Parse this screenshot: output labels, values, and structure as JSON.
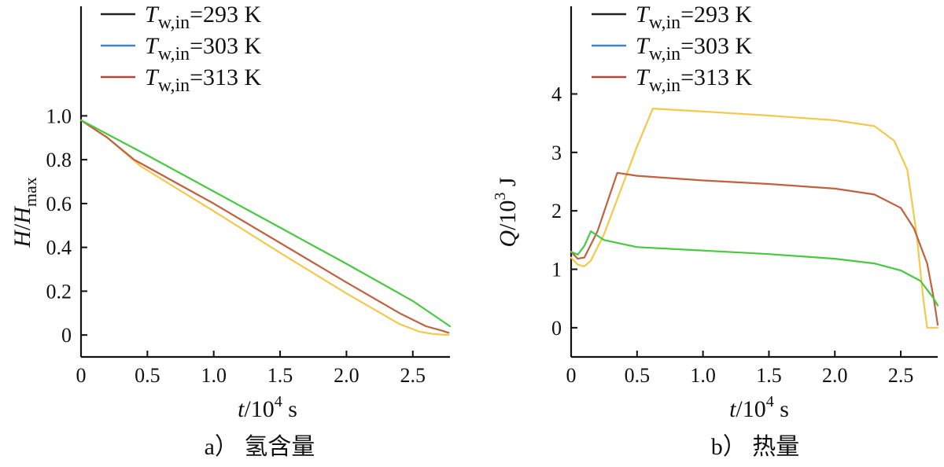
{
  "chart_data": [
    {
      "type": "line",
      "panel_caption": "a） 氢含量",
      "xlabel": {
        "var": "t",
        "sep": "/",
        "base": "10",
        "exp": "4",
        "unit": " s"
      },
      "ylabel": {
        "var": "H",
        "sep": "/",
        "var2": "H",
        "sub": "max"
      },
      "xlim": [
        0,
        2.78
      ],
      "ylim": [
        -0.1,
        1.5
      ],
      "xticks": [
        0,
        0.5,
        1.0,
        1.5,
        2.0,
        2.5
      ],
      "xtick_labels": [
        "0",
        "0.5",
        "1.0",
        "1.5",
        "2.0",
        "2.5"
      ],
      "yticks": [
        0,
        0.2,
        0.4,
        0.6,
        0.8,
        1.0
      ],
      "ytick_labels": [
        "0",
        "0.2",
        "0.4",
        "0.6",
        "0.8",
        "1.0"
      ],
      "legend": {
        "placement": "top-left",
        "entries": [
          {
            "var": "T",
            "sub": "w,in",
            "text": "=293 K",
            "color": "#222222"
          },
          {
            "var": "T",
            "sub": "w,in",
            "text": "=303 K",
            "color": "#3a86c8"
          },
          {
            "var": "T",
            "sub": "w,in",
            "text": "=313 K",
            "color": "#b5473a"
          }
        ]
      },
      "series": [
        {
          "color": "#f2c94c",
          "x": [
            0,
            0.2,
            0.45,
            1.0,
            1.5,
            2.0,
            2.4,
            2.55,
            2.65,
            2.72,
            2.77
          ],
          "y": [
            0.98,
            0.9,
            0.77,
            0.565,
            0.375,
            0.19,
            0.05,
            0.015,
            0.005,
            0.002,
            0.0
          ]
        },
        {
          "color": "#c0613f",
          "x": [
            0,
            0.2,
            0.4,
            1.0,
            1.5,
            2.0,
            2.4,
            2.6,
            2.72,
            2.77
          ],
          "y": [
            0.98,
            0.9,
            0.8,
            0.6,
            0.42,
            0.24,
            0.1,
            0.04,
            0.02,
            0.01
          ]
        },
        {
          "color": "#48c940",
          "x": [
            0,
            0.5,
            1.0,
            1.5,
            2.0,
            2.5,
            2.78
          ],
          "y": [
            0.98,
            0.82,
            0.655,
            0.49,
            0.325,
            0.155,
            0.04
          ]
        }
      ]
    },
    {
      "type": "line",
      "panel_caption": "b） 热量",
      "xlabel": {
        "var": "t",
        "sep": "/",
        "base": "10",
        "exp": "4",
        "unit": " s"
      },
      "ylabel": {
        "var": "Q",
        "sep": "/",
        "base": "10",
        "exp": "3",
        "unit": " J"
      },
      "xlim": [
        0,
        2.78
      ],
      "ylim": [
        -0.5,
        5.5
      ],
      "xticks": [
        0,
        0.5,
        1.0,
        1.5,
        2.0,
        2.5
      ],
      "xtick_labels": [
        "0",
        "0.5",
        "1.0",
        "1.5",
        "2.0",
        "2.5"
      ],
      "yticks": [
        0,
        1,
        2,
        3,
        4
      ],
      "ytick_labels": [
        "0",
        "1",
        "2",
        "3",
        "4"
      ],
      "legend": {
        "placement": "top-right",
        "entries": [
          {
            "var": "T",
            "sub": "w,in",
            "text": "=293 K",
            "color": "#222222"
          },
          {
            "var": "T",
            "sub": "w,in",
            "text": "=303 K",
            "color": "#3a86c8"
          },
          {
            "var": "T",
            "sub": "w,in",
            "text": "=313 K",
            "color": "#b5473a"
          }
        ]
      },
      "series": [
        {
          "color": "#f2c94c",
          "x": [
            0,
            0.05,
            0.1,
            0.15,
            0.25,
            0.4,
            0.5,
            0.62,
            1.0,
            1.5,
            2.0,
            2.3,
            2.45,
            2.55,
            2.62,
            2.67,
            2.7,
            2.78
          ],
          "y": [
            1.2,
            1.08,
            1.05,
            1.15,
            1.6,
            2.5,
            3.1,
            3.75,
            3.7,
            3.63,
            3.55,
            3.45,
            3.2,
            2.7,
            1.6,
            0.5,
            0.0,
            0.0
          ]
        },
        {
          "color": "#c0613f",
          "x": [
            0,
            0.05,
            0.1,
            0.2,
            0.35,
            0.5,
            1.0,
            1.5,
            2.0,
            2.3,
            2.5,
            2.6,
            2.7,
            2.75,
            2.78
          ],
          "y": [
            1.3,
            1.18,
            1.2,
            1.65,
            2.65,
            2.6,
            2.52,
            2.46,
            2.38,
            2.28,
            2.05,
            1.7,
            1.1,
            0.5,
            0.05
          ]
        },
        {
          "color": "#48c940",
          "x": [
            0,
            0.05,
            0.1,
            0.15,
            0.25,
            0.5,
            1.0,
            1.5,
            2.0,
            2.3,
            2.5,
            2.65,
            2.75,
            2.78
          ],
          "y": [
            1.3,
            1.25,
            1.4,
            1.65,
            1.5,
            1.38,
            1.32,
            1.26,
            1.18,
            1.1,
            0.98,
            0.8,
            0.5,
            0.38
          ]
        }
      ]
    }
  ]
}
